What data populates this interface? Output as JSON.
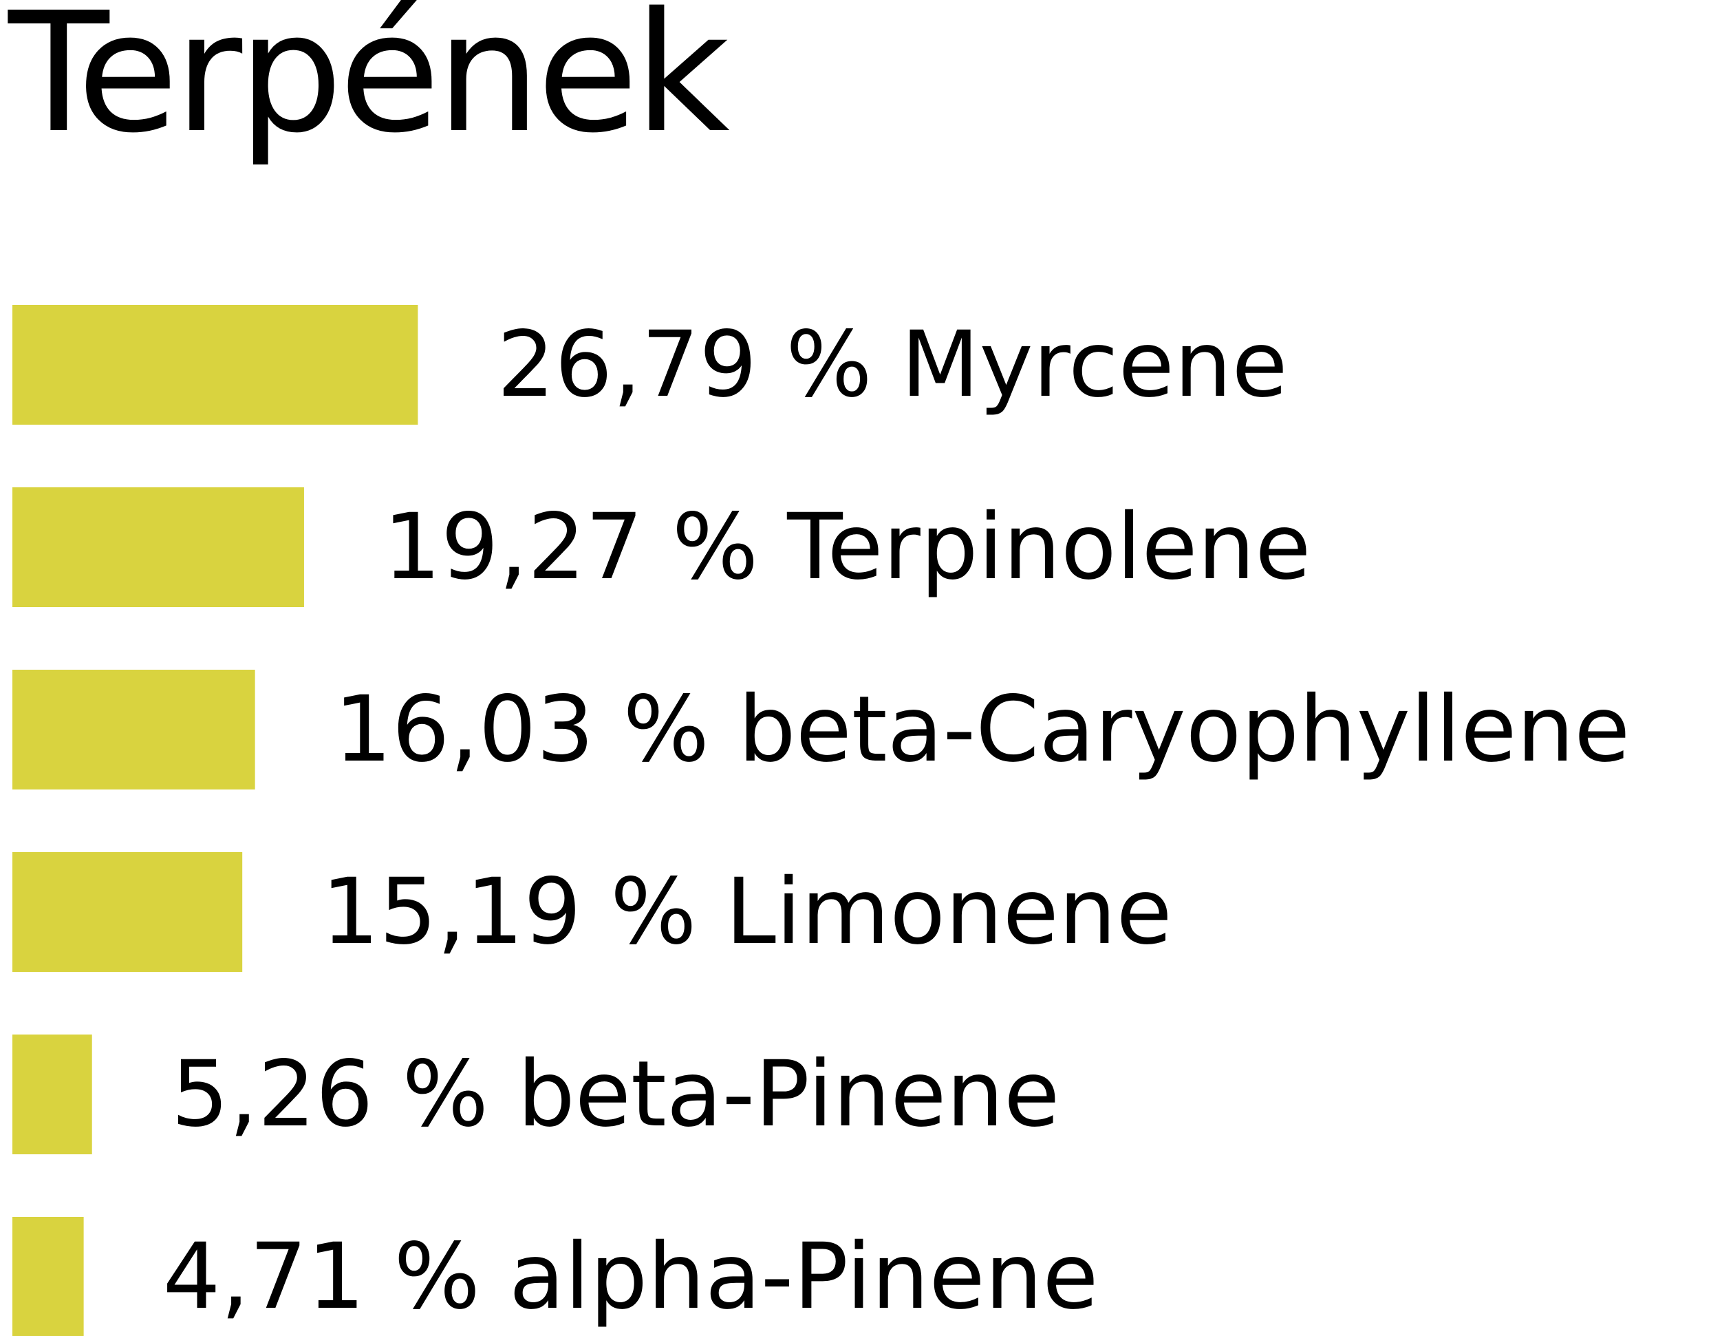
{
  "chart_data": {
    "type": "bar",
    "orientation": "horizontal",
    "title": "Terpének",
    "xlabel": "",
    "ylabel": "",
    "grid": false,
    "bar_color": "#d9d33f",
    "categories": [
      "Myrcene",
      "Terpinolene",
      "beta-Caryophyllene",
      "Limonene",
      "beta-Pinene",
      "alpha-Pinene"
    ],
    "values": [
      26.79,
      19.27,
      16.03,
      15.19,
      5.26,
      4.71
    ],
    "labels": [
      "26,79 % Myrcene",
      "19,27 % Terpinolene",
      "16,03 % beta-Caryophyllene",
      "15,19 % Limonene",
      "5,26 % beta-Pinene",
      "4,71 % alpha-Pinene"
    ]
  }
}
